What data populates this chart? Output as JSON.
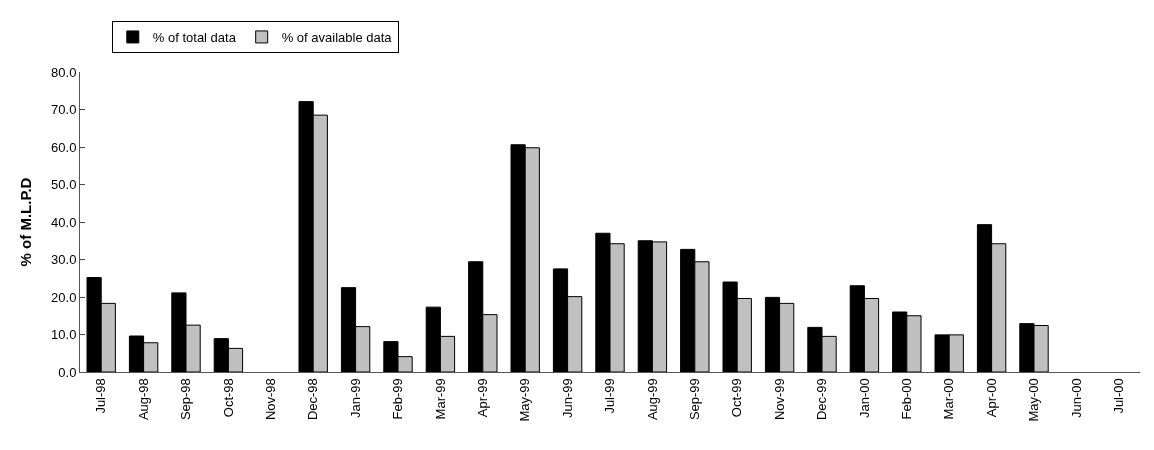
{
  "chart_data": {
    "type": "bar",
    "ylabel": "% of M.L.P.D",
    "categories": [
      "Jul-98",
      "Aug-98",
      "Sep-98",
      "Oct-98",
      "Nov-98",
      "Dec-98",
      "Jan-99",
      "Feb-99",
      "Mar-99",
      "Apr-99",
      "May-99",
      "Jun-99",
      "Jul-99",
      "Aug-99",
      "Sep-99",
      "Oct-99",
      "Nov-99",
      "Dec-99",
      "Jan-00",
      "Feb-00",
      "Mar-00",
      "Apr-00",
      "May-00",
      "Jun-00",
      "Jul-00"
    ],
    "series": [
      {
        "name": "% of total data",
        "color": "#000000",
        "values": [
          25.2,
          9.6,
          21.1,
          8.9,
          null,
          72.1,
          22.5,
          8.1,
          17.3,
          29.4,
          60.6,
          27.5,
          37.0,
          35.0,
          32.7,
          24.0,
          19.9,
          11.9,
          23.0,
          16.0,
          9.9,
          39.3,
          12.9,
          null,
          null
        ]
      },
      {
        "name": "% of available data",
        "color": "#c0c0c0",
        "values": [
          18.3,
          7.8,
          12.5,
          6.3,
          null,
          68.5,
          12.1,
          4.1,
          9.5,
          15.3,
          59.8,
          20.1,
          34.2,
          34.7,
          29.4,
          19.6,
          18.3,
          9.5,
          19.6,
          15.0,
          9.9,
          34.2,
          12.4,
          null,
          null
        ]
      }
    ],
    "ylim": [
      0,
      80
    ],
    "yticks": [
      {
        "value": 0,
        "label": "0.0"
      },
      {
        "value": 10,
        "label": "10.0"
      },
      {
        "value": 20,
        "label": "20.0"
      },
      {
        "value": 30,
        "label": "30.0"
      },
      {
        "value": 40,
        "label": "40.0"
      },
      {
        "value": 50,
        "label": "50.0"
      },
      {
        "value": 60,
        "label": "60.0"
      },
      {
        "value": 70,
        "label": "70.0"
      },
      {
        "value": 80,
        "label": "80.0"
      }
    ],
    "legend": "top left"
  }
}
